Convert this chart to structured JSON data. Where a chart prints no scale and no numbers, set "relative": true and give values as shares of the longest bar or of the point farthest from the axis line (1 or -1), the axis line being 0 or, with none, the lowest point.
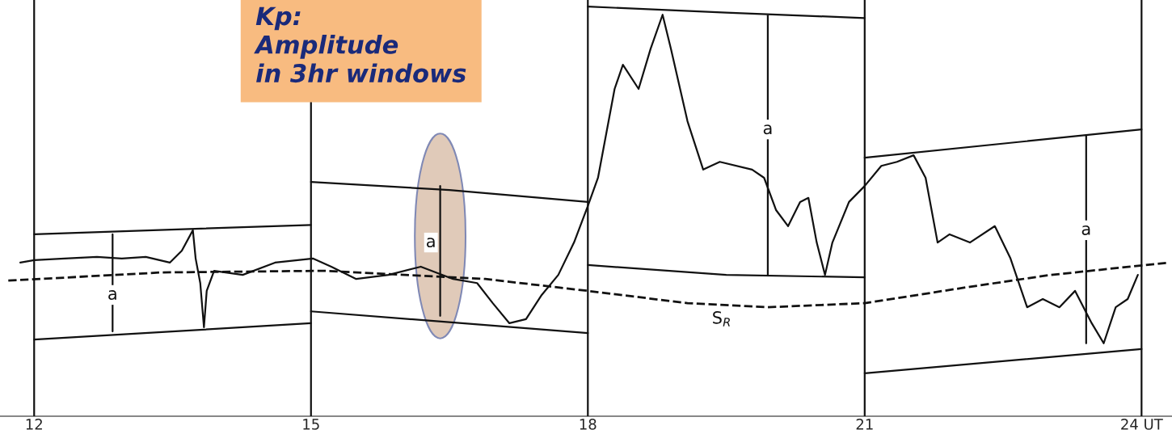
{
  "chart_data": {
    "type": "line",
    "relative": true,
    "xlim": [
      11.63,
      24.33
    ],
    "xticks": [
      12,
      15,
      18,
      {
        "value": 24,
        "label": "24 UT"
      },
      21
    ],
    "tick_labels": "x",
    "grid": "x",
    "marker": "none",
    "line_style": "solid",
    "series": [
      {
        "color": "#111111",
        "x": [
          11.85,
          12.0,
          12.33,
          12.68,
          12.95,
          13.21,
          13.47,
          13.6,
          13.72,
          13.75,
          13.8,
          13.84,
          13.87,
          13.95,
          14.26,
          14.61,
          15.02,
          15.22,
          15.49,
          15.84,
          16.19,
          16.54,
          16.8,
          16.97,
          17.15,
          17.33,
          17.5,
          17.68,
          17.85,
          18.0,
          18.11,
          18.29,
          18.38,
          18.55,
          18.68,
          18.81,
          18.9,
          19.08,
          19.25,
          19.43,
          19.78,
          19.91,
          20.04,
          20.17,
          20.3,
          20.39,
          20.48,
          20.57,
          20.65,
          20.83,
          21.0,
          21.18,
          21.35,
          21.53,
          21.66,
          21.79,
          21.92,
          22.14,
          22.41,
          22.58,
          22.76,
          22.93,
          23.11,
          23.28,
          23.46,
          23.59,
          23.72,
          23.85,
          23.96
        ],
        "values": [
          0.375,
          0.381,
          0.385,
          0.389,
          0.385,
          0.389,
          0.375,
          0.404,
          0.454,
          0.385,
          0.325,
          0.217,
          0.306,
          0.355,
          0.345,
          0.375,
          0.385,
          0.365,
          0.335,
          0.345,
          0.365,
          0.335,
          0.325,
          0.276,
          0.227,
          0.237,
          0.296,
          0.345,
          0.424,
          0.513,
          0.582,
          0.799,
          0.858,
          0.799,
          0.897,
          0.98,
          0.897,
          0.72,
          0.602,
          0.621,
          0.602,
          0.582,
          0.503,
          0.464,
          0.523,
          0.533,
          0.424,
          0.345,
          0.424,
          0.523,
          0.562,
          0.611,
          0.621,
          0.637,
          0.582,
          0.424,
          0.444,
          0.424,
          0.464,
          0.385,
          0.266,
          0.286,
          0.266,
          0.306,
          0.227,
          0.178,
          0.266,
          0.286,
          0.345
        ]
      },
      {
        "color": "#111111",
        "line_style": "dashed",
        "x": [
          11.72,
          13.38,
          15.14,
          16.89,
          18.0,
          19.08,
          19.95,
          21.0,
          22.14,
          23.02,
          24.3
        ],
        "values": [
          0.331,
          0.351,
          0.355,
          0.335,
          0.306,
          0.276,
          0.266,
          0.276,
          0.316,
          0.345,
          0.375
        ]
      },
      {
        "color": "#111111",
        "x": [
          12,
          15
        ],
        "values": [
          0.444,
          0.467
        ]
      },
      {
        "color": "#111111",
        "x": [
          15,
          16.5,
          18
        ],
        "values": [
          0.572,
          0.552,
          0.523
        ]
      },
      {
        "color": "#111111",
        "x": [
          18,
          19.5,
          21
        ],
        "values": [
          1.0,
          0.985,
          0.972
        ]
      },
      {
        "color": "#111111",
        "x": [
          21,
          24
        ],
        "values": [
          0.631,
          0.7
        ]
      },
      {
        "color": "#111111",
        "x": [
          12,
          15
        ],
        "values": [
          0.187,
          0.227
        ]
      },
      {
        "color": "#111111",
        "x": [
          15,
          18
        ],
        "values": [
          0.256,
          0.203
        ]
      },
      {
        "color": "#111111",
        "x": [
          18,
          19.5,
          21
        ],
        "values": [
          0.369,
          0.345,
          0.339
        ]
      },
      {
        "color": "#111111",
        "x": [
          21,
          24
        ],
        "values": [
          0.105,
          0.164
        ]
      },
      {
        "color": "#111111",
        "x": [
          12.85,
          12.85
        ],
        "values": [
          0.444,
          0.207
        ]
      },
      {
        "color": "#111111",
        "x": [
          16.4,
          16.4
        ],
        "values": [
          0.562,
          0.245
        ]
      },
      {
        "color": "#111111",
        "x": [
          19.95,
          19.95
        ],
        "values": [
          0.978,
          0.345
        ]
      },
      {
        "color": "#111111",
        "x": [
          23.4,
          23.4
        ],
        "values": [
          0.684,
          0.178
        ]
      }
    ],
    "annotations": [
      "Kp:\nAmplitude\nin 3hr windows",
      {
        "text": "a",
        "x": 12.85,
        "y": 0.296
      },
      {
        "text": "a",
        "x": 16.3,
        "y": 0.424
      },
      {
        "text": "a",
        "x": 19.95,
        "y": 0.7
      },
      {
        "text": "a",
        "x": 23.4,
        "y": 0.454
      },
      {
        "text": "S$_{R}$",
        "x": 19.45,
        "y": 0.237
      }
    ]
  }
}
